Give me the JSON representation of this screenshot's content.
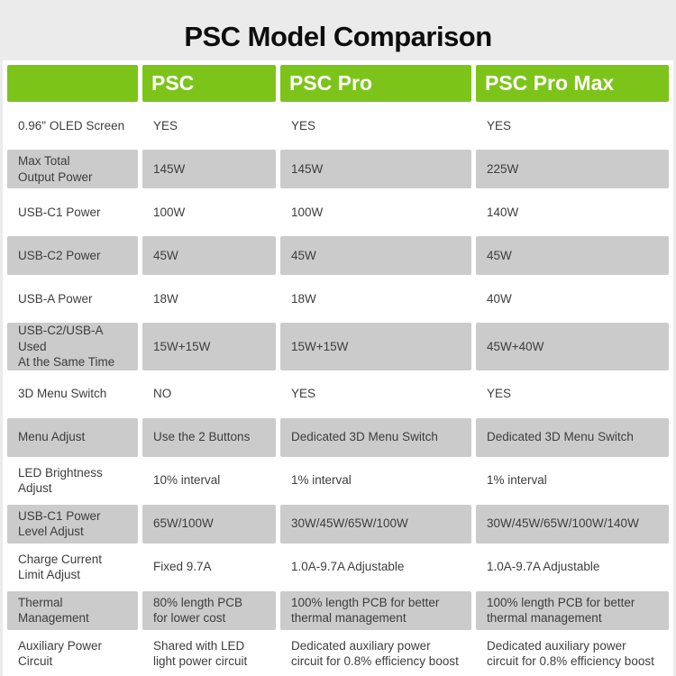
{
  "page_title": "PSC Model Comparison",
  "chart_data": {
    "type": "table",
    "title": "PSC Model Comparison",
    "columns": [
      "",
      "PSC",
      "PSC Pro",
      "PSC Pro Max"
    ],
    "rows": [
      {
        "feature": "0.96\" OLED Screen",
        "values": [
          "YES",
          "YES",
          "YES"
        ]
      },
      {
        "feature": "Max Total\nOutput Power",
        "values": [
          "145W",
          "145W",
          "225W"
        ]
      },
      {
        "feature": "USB-C1 Power",
        "values": [
          "100W",
          "100W",
          "140W"
        ]
      },
      {
        "feature": "USB-C2 Power",
        "values": [
          "45W",
          "45W",
          "45W"
        ]
      },
      {
        "feature": "USB-A Power",
        "values": [
          "18W",
          "18W",
          "40W"
        ]
      },
      {
        "feature": "USB-C2/USB-A Used\nAt the Same Time",
        "values": [
          "15W+15W",
          "15W+15W",
          "45W+40W"
        ]
      },
      {
        "feature": "3D Menu Switch",
        "values": [
          "NO",
          "YES",
          "YES"
        ]
      },
      {
        "feature": "Menu Adjust",
        "values": [
          "Use the 2 Buttons",
          "Dedicated 3D Menu Switch",
          "Dedicated 3D Menu Switch"
        ]
      },
      {
        "feature": "LED Brightness\nAdjust",
        "values": [
          "10% interval",
          "1% interval",
          "1% interval"
        ]
      },
      {
        "feature": "USB-C1 Power\nLevel Adjust",
        "values": [
          "65W/100W",
          "30W/45W/65W/100W",
          "30W/45W/65W/100W/140W"
        ]
      },
      {
        "feature": "Charge Current\nLimit Adjust",
        "values": [
          "Fixed 9.7A",
          "1.0A-9.7A Adjustable",
          "1.0A-9.7A Adjustable"
        ]
      },
      {
        "feature": "Thermal\nManagement",
        "values": [
          "80% length PCB\nfor lower cost",
          "100% length PCB for better\nthermal management",
          "100% length PCB for better\nthermal management"
        ]
      },
      {
        "feature": "Auxiliary Power\nCircuit",
        "values": [
          "Shared with LED\nlight power circuit",
          "Dedicated auxiliary power\ncircuit for 0.8% efficiency boost",
          "Dedicated auxiliary power\ncircuit for 0.8% efficiency boost"
        ]
      }
    ],
    "layout": {
      "legend": "none",
      "striped": true,
      "stripe_colors": [
        "#FFFFFF",
        "#CBCBCB"
      ],
      "header_bg": "#7DC41A",
      "header_text_color": "#FFFFFF",
      "cell_text_color": "#3D3D3D",
      "page_bg": "#EBEBEB",
      "gap_color": "#FFFFFF"
    }
  },
  "colors": {
    "accent_green": "#7DC41A",
    "row_gray": "#CBCBCB",
    "row_white": "#FFFFFF",
    "page_bg": "#EBEBEB",
    "title_text": "#0D0D0D",
    "cell_text": "#3D3D3D"
  }
}
